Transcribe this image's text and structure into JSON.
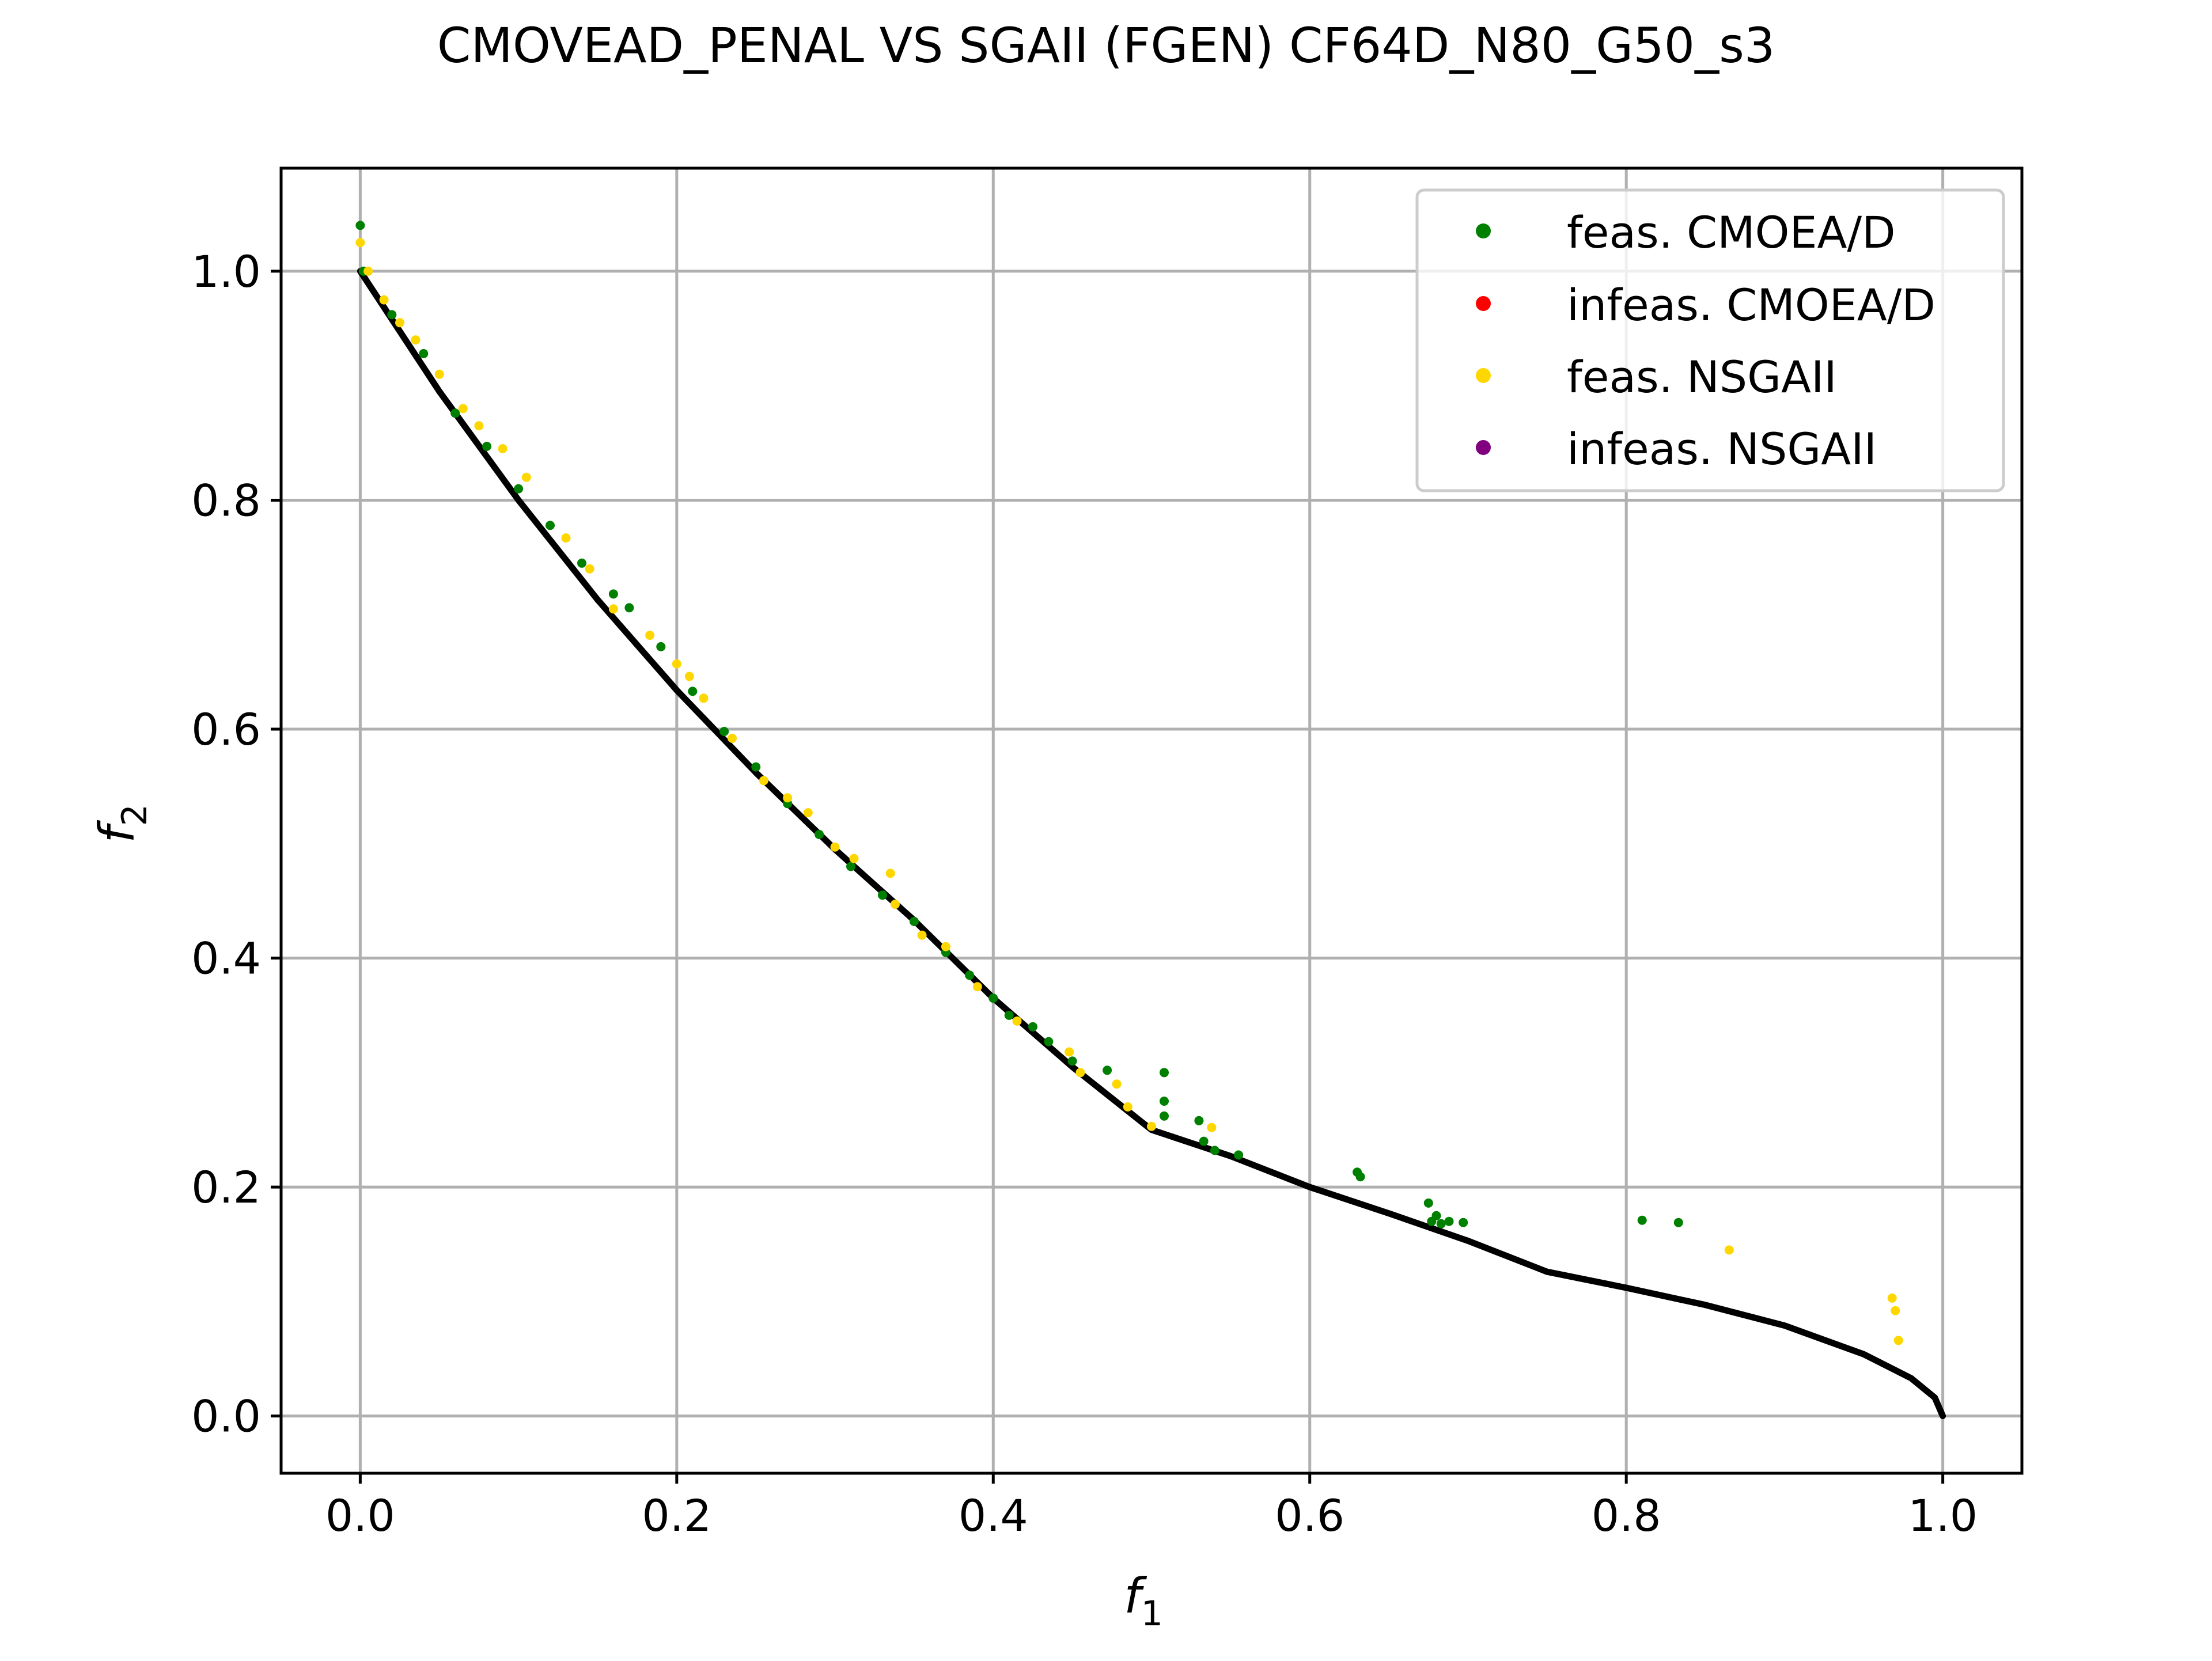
{
  "chart_data": {
    "type": "scatter",
    "title": "CMOVEAD_PENAL VS SGAII (FGEN) CF64D_N80_G50_s3",
    "xlabel": "f",
    "xlabel_sub": "1",
    "ylabel": "f",
    "ylabel_sub": "2",
    "xlim": [
      -0.05,
      1.05
    ],
    "ylim": [
      -0.05,
      1.09
    ],
    "xticks": [
      0.0,
      0.2,
      0.4,
      0.6,
      0.8,
      1.0
    ],
    "yticks": [
      0.0,
      0.2,
      0.4,
      0.6,
      0.8,
      1.0
    ],
    "xtick_labels": [
      "0.0",
      "0.2",
      "0.4",
      "0.6",
      "0.8",
      "1.0"
    ],
    "ytick_labels": [
      "0.0",
      "0.2",
      "0.4",
      "0.6",
      "0.8",
      "1.0"
    ],
    "grid": true,
    "legend_position": "top-right",
    "colors": {
      "feas_cmoead": "#008000",
      "infeas_cmoead": "#ff0000",
      "feas_nsgaii": "#ffd700",
      "infeas_nsgaii": "#800080",
      "front": "#000000",
      "grid": "#b0b0b0"
    },
    "legend": [
      {
        "label": "feas. CMOEA/D",
        "color": "#008000"
      },
      {
        "label": "infeas. CMOEA/D",
        "color": "#ff0000"
      },
      {
        "label": "feas. NSGAII",
        "color": "#ffd700"
      },
      {
        "label": "infeas. NSGAII",
        "color": "#800080"
      }
    ],
    "front": [
      [
        0.0,
        1.0
      ],
      [
        0.05,
        0.895
      ],
      [
        0.1,
        0.8
      ],
      [
        0.15,
        0.713
      ],
      [
        0.2,
        0.634
      ],
      [
        0.25,
        0.562
      ],
      [
        0.3,
        0.495
      ],
      [
        0.35,
        0.433
      ],
      [
        0.4,
        0.365
      ],
      [
        0.45,
        0.305
      ],
      [
        0.5,
        0.25
      ],
      [
        0.55,
        0.227
      ],
      [
        0.6,
        0.2
      ],
      [
        0.65,
        0.177
      ],
      [
        0.7,
        0.153
      ],
      [
        0.75,
        0.126
      ],
      [
        0.8,
        0.112
      ],
      [
        0.85,
        0.097
      ],
      [
        0.9,
        0.079
      ],
      [
        0.95,
        0.054
      ],
      [
        0.98,
        0.033
      ],
      [
        0.995,
        0.016
      ],
      [
        1.0,
        0.0
      ]
    ],
    "series": [
      {
        "name": "feas. CMOEA/D",
        "color": "#008000",
        "points": [
          [
            0.0,
            1.04
          ],
          [
            0.002,
            1.0
          ],
          [
            0.02,
            0.962
          ],
          [
            0.04,
            0.928
          ],
          [
            0.06,
            0.876
          ],
          [
            0.08,
            0.847
          ],
          [
            0.1,
            0.81
          ],
          [
            0.12,
            0.778
          ],
          [
            0.14,
            0.745
          ],
          [
            0.16,
            0.718
          ],
          [
            0.17,
            0.706
          ],
          [
            0.19,
            0.672
          ],
          [
            0.21,
            0.633
          ],
          [
            0.23,
            0.598
          ],
          [
            0.25,
            0.567
          ],
          [
            0.27,
            0.535
          ],
          [
            0.29,
            0.508
          ],
          [
            0.31,
            0.48
          ],
          [
            0.33,
            0.455
          ],
          [
            0.35,
            0.432
          ],
          [
            0.37,
            0.405
          ],
          [
            0.385,
            0.385
          ],
          [
            0.4,
            0.365
          ],
          [
            0.41,
            0.35
          ],
          [
            0.425,
            0.34
          ],
          [
            0.435,
            0.327
          ],
          [
            0.45,
            0.31
          ],
          [
            0.472,
            0.302
          ],
          [
            0.508,
            0.3
          ],
          [
            0.508,
            0.275
          ],
          [
            0.508,
            0.262
          ],
          [
            0.53,
            0.258
          ],
          [
            0.533,
            0.24
          ],
          [
            0.54,
            0.232
          ],
          [
            0.555,
            0.228
          ],
          [
            0.63,
            0.213
          ],
          [
            0.632,
            0.209
          ],
          [
            0.675,
            0.186
          ],
          [
            0.677,
            0.17
          ],
          [
            0.68,
            0.175
          ],
          [
            0.683,
            0.168
          ],
          [
            0.688,
            0.17
          ],
          [
            0.697,
            0.169
          ],
          [
            0.81,
            0.171
          ],
          [
            0.833,
            0.169
          ]
        ]
      },
      {
        "name": "infeas. CMOEA/D",
        "color": "#ff0000",
        "points": []
      },
      {
        "name": "feas. NSGAII",
        "color": "#ffd700",
        "points": [
          [
            0.0,
            1.025
          ],
          [
            0.005,
            1.0
          ],
          [
            0.015,
            0.975
          ],
          [
            0.025,
            0.955
          ],
          [
            0.035,
            0.94
          ],
          [
            0.05,
            0.91
          ],
          [
            0.065,
            0.88
          ],
          [
            0.075,
            0.865
          ],
          [
            0.09,
            0.845
          ],
          [
            0.105,
            0.82
          ],
          [
            0.13,
            0.767
          ],
          [
            0.145,
            0.74
          ],
          [
            0.16,
            0.705
          ],
          [
            0.183,
            0.682
          ],
          [
            0.2,
            0.657
          ],
          [
            0.208,
            0.646
          ],
          [
            0.217,
            0.627
          ],
          [
            0.235,
            0.592
          ],
          [
            0.255,
            0.555
          ],
          [
            0.27,
            0.54
          ],
          [
            0.283,
            0.527
          ],
          [
            0.3,
            0.497
          ],
          [
            0.312,
            0.487
          ],
          [
            0.335,
            0.474
          ],
          [
            0.338,
            0.447
          ],
          [
            0.355,
            0.42
          ],
          [
            0.37,
            0.41
          ],
          [
            0.39,
            0.375
          ],
          [
            0.415,
            0.345
          ],
          [
            0.448,
            0.318
          ],
          [
            0.455,
            0.3
          ],
          [
            0.478,
            0.29
          ],
          [
            0.485,
            0.27
          ],
          [
            0.5,
            0.253
          ],
          [
            0.538,
            0.252
          ],
          [
            0.865,
            0.145
          ],
          [
            0.968,
            0.103
          ],
          [
            0.97,
            0.092
          ],
          [
            0.972,
            0.066
          ]
        ]
      },
      {
        "name": "infeas. NSGAII",
        "color": "#800080",
        "points": []
      }
    ]
  }
}
